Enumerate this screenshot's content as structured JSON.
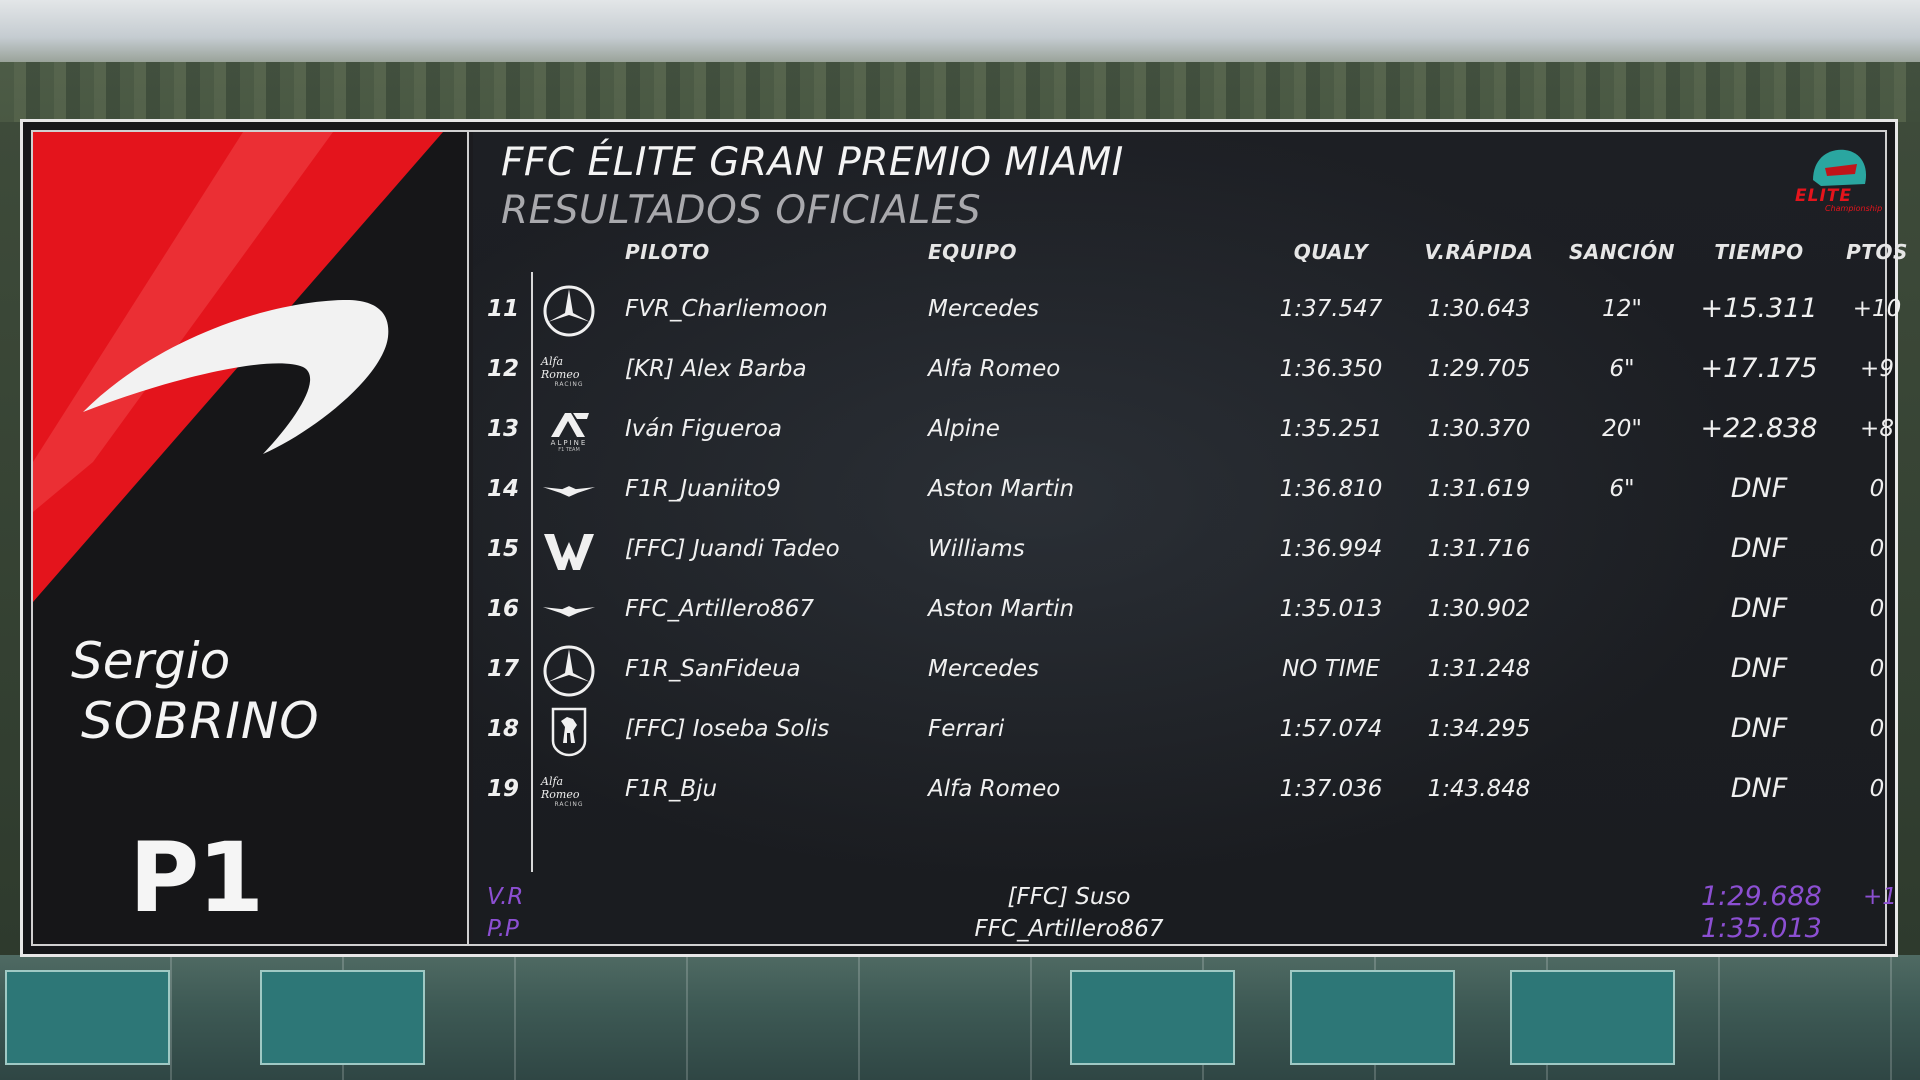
{
  "event": {
    "title": "FFC ÉLITE GRAN PREMIO MIAMI",
    "subtitle": "RESULTADOS OFICIALES",
    "logo_text": "ELITE",
    "logo_subtext": "Championship"
  },
  "featured": {
    "first_name": "Sergio",
    "last_name": "SOBRINO",
    "position": "P1",
    "team_icon": "mclaren-swoosh-icon",
    "accent_color": "#e4141c"
  },
  "columns": {
    "piloto": "PILOTO",
    "equipo": "EQUIPO",
    "qualy": "QUALY",
    "vrapida": "V.RÁPIDA",
    "sancion": "SANCIÓN",
    "tiempo": "TIEMPO",
    "ptos": "PTOS"
  },
  "rows": [
    {
      "pos": "11",
      "team_logo": "mercedes-logo-icon",
      "piloto": "FVR_Charliemoon",
      "equipo": "Mercedes",
      "qualy": "1:37.547",
      "vrapida": "1:30.643",
      "sancion": "12\"",
      "tiempo": "+15.311",
      "ptos": "+10"
    },
    {
      "pos": "12",
      "team_logo": "alfa-romeo-logo-icon",
      "piloto": "[KR] Alex Barba",
      "equipo": "Alfa Romeo",
      "qualy": "1:36.350",
      "vrapida": "1:29.705",
      "sancion": "6\"",
      "tiempo": "+17.175",
      "ptos": "+9"
    },
    {
      "pos": "13",
      "team_logo": "alpine-logo-icon",
      "piloto": "Iván Figueroa",
      "equipo": "Alpine",
      "qualy": "1:35.251",
      "vrapida": "1:30.370",
      "sancion": "20\"",
      "tiempo": "+22.838",
      "ptos": "+8"
    },
    {
      "pos": "14",
      "team_logo": "aston-martin-logo-icon",
      "piloto": "F1R_Juaniito9",
      "equipo": "Aston Martin",
      "qualy": "1:36.810",
      "vrapida": "1:31.619",
      "sancion": "6\"",
      "tiempo": "DNF",
      "ptos": "0"
    },
    {
      "pos": "15",
      "team_logo": "williams-logo-icon",
      "piloto": "[FFC] Juandi Tadeo",
      "equipo": "Williams",
      "qualy": "1:36.994",
      "vrapida": "1:31.716",
      "sancion": "",
      "tiempo": "DNF",
      "ptos": "0"
    },
    {
      "pos": "16",
      "team_logo": "aston-martin-logo-icon",
      "piloto": "FFC_Artillero867",
      "equipo": "Aston Martin",
      "qualy": "1:35.013",
      "vrapida": "1:30.902",
      "sancion": "",
      "tiempo": "DNF",
      "ptos": "0"
    },
    {
      "pos": "17",
      "team_logo": "mercedes-logo-icon",
      "piloto": "F1R_SanFideua",
      "equipo": "Mercedes",
      "qualy": "NO TIME",
      "vrapida": "1:31.248",
      "sancion": "",
      "tiempo": "DNF",
      "ptos": "0"
    },
    {
      "pos": "18",
      "team_logo": "ferrari-logo-icon",
      "piloto": "[FFC] Ioseba Solis",
      "equipo": "Ferrari",
      "qualy": "1:57.074",
      "vrapida": "1:34.295",
      "sancion": "",
      "tiempo": "DNF",
      "ptos": "0"
    },
    {
      "pos": "19",
      "team_logo": "alfa-romeo-logo-icon",
      "piloto": "F1R_Bju",
      "equipo": "Alfa Romeo",
      "qualy": "1:37.036",
      "vrapida": "1:43.848",
      "sancion": "",
      "tiempo": "DNF",
      "ptos": "0"
    }
  ],
  "logo_texts": {
    "alfa_script": "Alfa Romeo",
    "alfa_racing": "RACING",
    "alpine_word": "ALPINE",
    "alpine_sub": "F1 TEAM"
  },
  "footer": {
    "vr_label": "V.R",
    "vr_driver": "[FFC] Suso",
    "vr_time": "1:29.688",
    "vr_points": "+1",
    "pp_label": "P.P",
    "pp_driver": "FFC_Artillero867",
    "pp_time": "1:35.013"
  },
  "colors": {
    "purple": "#8c4fd2",
    "panel": "#1b1b1f",
    "red": "#e4141c"
  }
}
